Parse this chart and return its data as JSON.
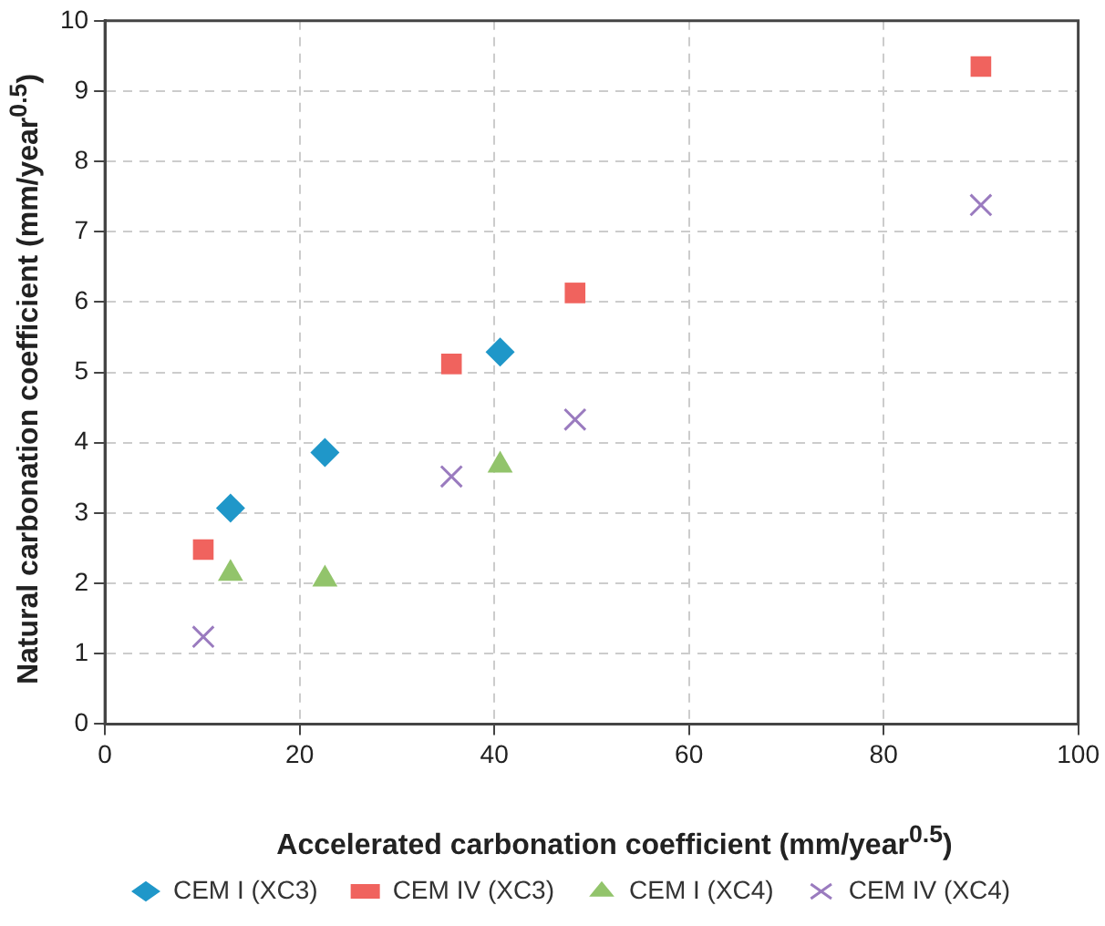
{
  "chart_data": {
    "type": "scatter",
    "xlabel": "Accelerated carbonation coefficient (mm/year$^{0.5}$)",
    "ylabel": "Natural carbonation coefficient (mm/year$^{0.5}$)",
    "xlim": [
      0,
      100
    ],
    "xticks": [
      0,
      20,
      40,
      60,
      80,
      100
    ],
    "ylim": [
      0,
      10
    ],
    "yticks": [
      0,
      1,
      2,
      3,
      4,
      5,
      6,
      7,
      8,
      9,
      10
    ],
    "grid": true,
    "legend": "bottom",
    "series": [
      {
        "name": "CEM I (XC3)",
        "color": "#1f97c9",
        "marker": "diamond",
        "x": [
          12.9,
          22.6,
          40.6
        ],
        "values": [
          3.07,
          3.86,
          5.29
        ]
      },
      {
        "name": "CEM IV (XC3)",
        "color": "#f0635e",
        "marker": "square",
        "x": [
          10.1,
          35.6,
          48.3,
          90.0
        ],
        "values": [
          2.48,
          5.12,
          6.13,
          9.35
        ]
      },
      {
        "name": "CEM I (XC4)",
        "color": "#92c46b",
        "marker": "triangle",
        "x": [
          12.9,
          22.6,
          40.6
        ],
        "values": [
          2.14,
          2.06,
          3.68
        ]
      },
      {
        "name": "CEM IV (XC4)",
        "color": "#9a7bbf",
        "marker": "cross",
        "x": [
          10.1,
          35.6,
          48.3,
          90.0
        ],
        "values": [
          1.24,
          3.52,
          4.33,
          7.38
        ]
      }
    ]
  }
}
